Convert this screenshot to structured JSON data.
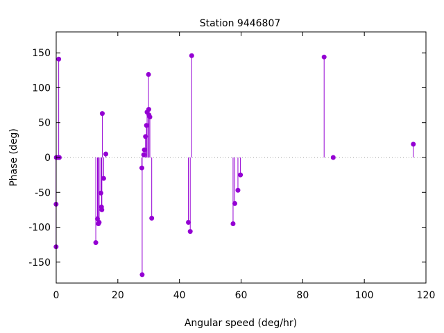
{
  "chart_data": {
    "type": "scatter",
    "style": "impulses-with-points",
    "title": "Station 9446807",
    "xlabel": "Angular speed (deg/hr)",
    "ylabel": "Phase (deg)",
    "xlim": [
      0,
      120
    ],
    "ylim": [
      -180,
      180
    ],
    "x_ticks": [
      0,
      20,
      40,
      60,
      80,
      100,
      120
    ],
    "y_ticks": [
      -150,
      -100,
      -50,
      0,
      50,
      100,
      150
    ],
    "zero_line": true,
    "grid": false,
    "color": "#9400d3",
    "points": [
      {
        "x": -0.04,
        "y": -67
      },
      {
        "x": -0.04,
        "y": -128
      },
      {
        "x": 0.04,
        "y": 0
      },
      {
        "x": 0.5,
        "y": 0
      },
      {
        "x": 0.56,
        "y": 0
      },
      {
        "x": 0.82,
        "y": 141
      },
      {
        "x": 1.0,
        "y": 0
      },
      {
        "x": 12.85,
        "y": -122
      },
      {
        "x": 13.4,
        "y": -88
      },
      {
        "x": 13.7,
        "y": -95
      },
      {
        "x": 13.94,
        "y": -93
      },
      {
        "x": 14.5,
        "y": -51
      },
      {
        "x": 14.7,
        "y": -71
      },
      {
        "x": 14.82,
        "y": -75
      },
      {
        "x": 14.96,
        "y": 63
      },
      {
        "x": 15.4,
        "y": -30
      },
      {
        "x": 16.1,
        "y": 5
      },
      {
        "x": 27.8,
        "y": -15
      },
      {
        "x": 27.9,
        "y": -168
      },
      {
        "x": 28.4,
        "y": 4
      },
      {
        "x": 28.6,
        "y": 11
      },
      {
        "x": 28.98,
        "y": 30
      },
      {
        "x": 29.3,
        "y": 46
      },
      {
        "x": 29.5,
        "y": 65
      },
      {
        "x": 29.96,
        "y": 119
      },
      {
        "x": 30.04,
        "y": 69
      },
      {
        "x": 30.1,
        "y": 61
      },
      {
        "x": 30.4,
        "y": 58
      },
      {
        "x": 31.0,
        "y": -87
      },
      {
        "x": 42.9,
        "y": -93
      },
      {
        "x": 43.5,
        "y": -106
      },
      {
        "x": 43.97,
        "y": 146
      },
      {
        "x": 57.4,
        "y": -95
      },
      {
        "x": 57.97,
        "y": -66
      },
      {
        "x": 58.98,
        "y": -47
      },
      {
        "x": 59.8,
        "y": -25
      },
      {
        "x": 86.95,
        "y": 144
      },
      {
        "x": 89.9,
        "y": 0
      },
      {
        "x": 115.9,
        "y": 19
      }
    ]
  }
}
